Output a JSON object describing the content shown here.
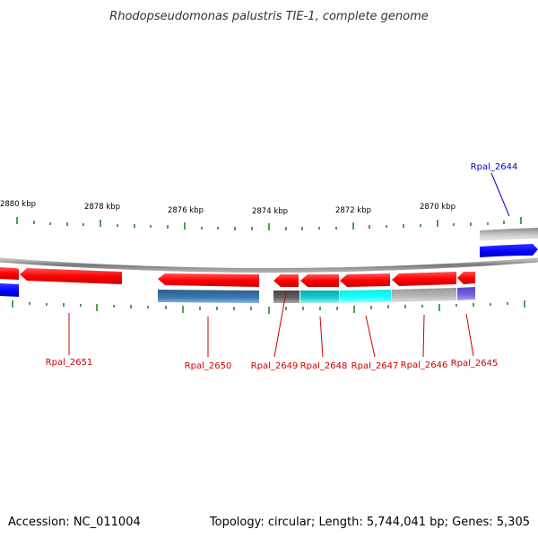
{
  "title": "Rhodopseudomonas palustris TIE-1, complete genome",
  "footer": {
    "accession": "Accession: NC_011004",
    "summary": "Topology: circular; Length: 5,744,041 bp; Genes: 5,305"
  },
  "scale_labels": [
    "2880 kbp",
    "2878 kbp",
    "2876 kbp",
    "2874 kbp",
    "2872 kbp",
    "2870 kbp"
  ],
  "genes": [
    {
      "label": "Rpal_2644",
      "label_color": "#0000cc"
    },
    {
      "label": "Rpal_2645",
      "label_color": "#cc0000"
    },
    {
      "label": "Rpal_2646",
      "label_color": "#cc0000"
    },
    {
      "label": "Rpal_2647",
      "label_color": "#cc0000"
    },
    {
      "label": "Rpal_2648",
      "label_color": "#cc0000"
    },
    {
      "label": "Rpal_2649",
      "label_color": "#cc0000"
    },
    {
      "label": "Rpal_2650",
      "label_color": "#cc0000"
    },
    {
      "label": "Rpal_2651",
      "label_color": "#cc0000"
    }
  ],
  "colors": {
    "forward_gene": "#ff0000",
    "reverse_gene_blue": "#0000ff",
    "tick": "#1a7a1a",
    "backbone": "#888888"
  }
}
